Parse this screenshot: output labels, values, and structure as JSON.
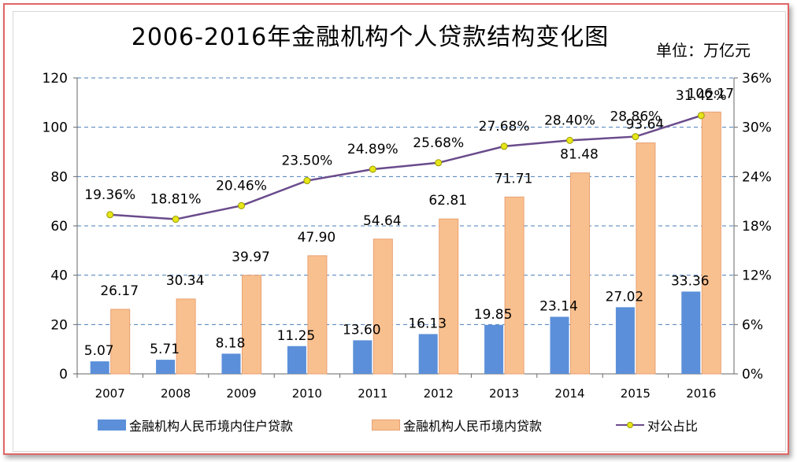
{
  "chart_data": {
    "type": "bar",
    "title": "2006-2016年金融机构个人贷款结构变化图",
    "unit_label": "单位：万亿元",
    "categories": [
      "2007",
      "2008",
      "2009",
      "2010",
      "2011",
      "2012",
      "2013",
      "2014",
      "2015",
      "2016"
    ],
    "series": [
      {
        "name": "金融机构人民币境内住户贷款",
        "type": "bar",
        "axis": "left",
        "color": "#5b8fd9",
        "values": [
          5.07,
          5.71,
          8.18,
          11.25,
          13.6,
          16.13,
          19.85,
          23.14,
          27.02,
          33.36
        ],
        "labels": [
          "5.07",
          "5.71",
          "8.18",
          "11.25",
          "13.60",
          "16.13",
          "19.85",
          "23.14",
          "27.02",
          "33.36"
        ]
      },
      {
        "name": "金融机构人民币境内贷款",
        "type": "bar",
        "axis": "left",
        "color": "#f9c08f",
        "values": [
          26.17,
          30.34,
          39.97,
          47.9,
          54.64,
          62.81,
          71.71,
          81.48,
          93.64,
          106.17
        ],
        "labels": [
          "26.17",
          "30.34",
          "39.97",
          "47.90",
          "54.64",
          "62.81",
          "71.71",
          "81.48",
          "93.64",
          "106.17"
        ]
      },
      {
        "name": "对公占比",
        "type": "line",
        "axis": "right",
        "color": "#6a4b8c",
        "values": [
          19.36,
          18.81,
          20.46,
          23.5,
          24.89,
          25.68,
          27.68,
          28.4,
          28.86,
          31.42
        ],
        "labels": [
          "19.36%",
          "18.81%",
          "20.46%",
          "23.50%",
          "24.89%",
          "25.68%",
          "27.68%",
          "28.40%",
          "28.86%",
          "31.42%"
        ]
      }
    ],
    "y_left": {
      "range": [
        0,
        120
      ],
      "ticks": [
        "0",
        "20",
        "40",
        "60",
        "80",
        "100",
        "120"
      ]
    },
    "y_right": {
      "range": [
        0,
        36
      ],
      "ticks": [
        "0%",
        "6%",
        "12%",
        "18%",
        "24%",
        "30%",
        "36%"
      ]
    },
    "grid": true,
    "legend": "bottom"
  }
}
